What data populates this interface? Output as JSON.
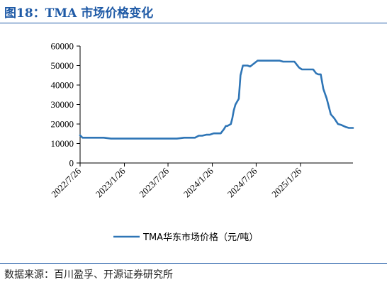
{
  "header": {
    "title": "图18：TMA 市场价格变化"
  },
  "footer": {
    "source": "数据来源：百川盈孚、开源证券研究所"
  },
  "colors": {
    "accent": "#1f5aa6",
    "series": "#2e75b6"
  },
  "chart_data": {
    "type": "line",
    "title": "",
    "xlabel": "",
    "ylabel": "",
    "ylim": [
      0,
      60000
    ],
    "y_ticks": [
      0,
      10000,
      20000,
      30000,
      40000,
      50000,
      60000
    ],
    "y_tick_labels": [
      "0",
      "10000",
      "20000",
      "30000",
      "40000",
      "50000",
      "60000"
    ],
    "x_range": [
      "2022/7/26",
      "2025/9/1"
    ],
    "x_ticks": [
      "2022/7/26",
      "2023/1/26",
      "2023/7/26",
      "2024/1/26",
      "2024/7/26",
      "2025/1/26"
    ],
    "grid": false,
    "legend": "bottom",
    "series": [
      {
        "name": "TMA华东市场价格（元/吨）",
        "x": [
          "2022/7/26",
          "2022/8/5",
          "2022/9/1",
          "2022/10/1",
          "2022/11/1",
          "2022/12/1",
          "2023/1/1",
          "2023/2/1",
          "2023/3/1",
          "2023/4/1",
          "2023/5/1",
          "2023/6/1",
          "2023/7/1",
          "2023/8/1",
          "2023/9/1",
          "2023/10/1",
          "2023/10/20",
          "2023/11/1",
          "2023/11/15",
          "2023/12/1",
          "2023/12/15",
          "2024/1/1",
          "2024/1/15",
          "2024/2/1",
          "2024/2/10",
          "2024/2/20",
          "2024/3/1",
          "2024/3/15",
          "2024/3/22",
          "2024/3/28",
          "2024/4/5",
          "2024/4/12",
          "2024/4/18",
          "2024/4/24",
          "2024/5/1",
          "2024/5/15",
          "2024/5/22",
          "2024/6/1",
          "2024/6/10",
          "2024/6/20",
          "2024/7/1",
          "2024/8/1",
          "2024/9/1",
          "2024/10/1",
          "2024/10/15",
          "2024/11/1",
          "2024/11/15",
          "2024/12/1",
          "2025/1/1",
          "2025/1/20",
          "2025/2/1",
          "2025/2/15",
          "2025/3/1",
          "2025/3/10",
          "2025/3/20",
          "2025/4/1",
          "2025/4/10",
          "2025/4/20",
          "2025/5/1",
          "2025/5/15",
          "2025/6/1",
          "2025/6/15",
          "2025/7/1",
          "2025/7/15",
          "2025/8/1",
          "2025/8/15",
          "2025/9/1"
        ],
        "values": [
          14200,
          13000,
          13000,
          13000,
          13000,
          12500,
          12500,
          12500,
          12500,
          12500,
          12500,
          12500,
          12500,
          12500,
          12500,
          13000,
          13000,
          13000,
          13000,
          14000,
          14000,
          14500,
          14500,
          15200,
          15200,
          15200,
          15200,
          17500,
          19000,
          19000,
          19500,
          20000,
          23000,
          27000,
          30000,
          33000,
          45000,
          50000,
          50000,
          50000,
          49500,
          52500,
          52500,
          52500,
          52500,
          52500,
          52000,
          52000,
          52000,
          49000,
          48000,
          48000,
          48000,
          48000,
          48000,
          46000,
          45500,
          45500,
          38000,
          33000,
          25000,
          23000,
          20000,
          19500,
          18500,
          18000,
          18000
        ]
      }
    ]
  }
}
